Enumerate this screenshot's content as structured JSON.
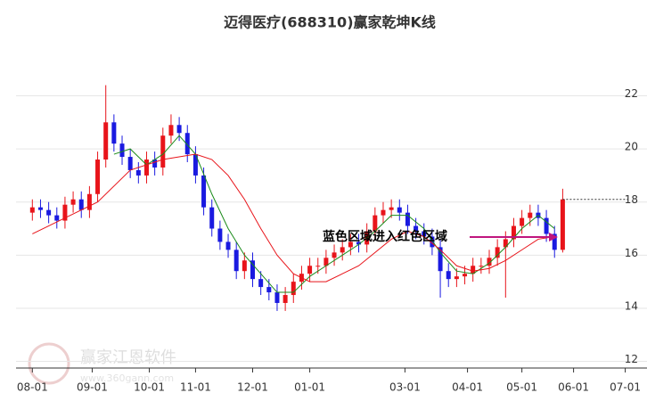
{
  "chart_data": {
    "type": "candlestick",
    "title": "迈得医疗(688310)赢家乾坤K线",
    "watermark": "赢家江恩软件",
    "watermark_url": "www.360gann.com",
    "annotation": "蓝色区域进入红色区域",
    "annotation_color": "#c0157e",
    "up_color": "#e8141a",
    "down_color": "#1a1ae0",
    "ylim": [
      11.75,
      24.6
    ],
    "yticks": [
      12,
      14,
      16,
      18,
      20,
      22
    ],
    "grid": true,
    "xlim": [
      -6,
      226
    ],
    "xticks": [
      {
        "value": 0,
        "label": "08-01"
      },
      {
        "value": 22,
        "label": "09-01"
      },
      {
        "value": 43,
        "label": "10-01"
      },
      {
        "value": 60,
        "label": "11-01"
      },
      {
        "value": 81,
        "label": "12-01"
      },
      {
        "value": 102,
        "label": "01-01"
      },
      {
        "value": 137,
        "label": "03-01"
      },
      {
        "value": 160,
        "label": "04-01"
      },
      {
        "value": 180,
        "label": "05-01"
      },
      {
        "value": 199,
        "label": "06-01"
      },
      {
        "value": 218,
        "label": "07-01"
      }
    ],
    "x": [
      0,
      3,
      6,
      9,
      12,
      15,
      18,
      21,
      24,
      27,
      30,
      33,
      36,
      39,
      42,
      45,
      48,
      51,
      54,
      57,
      60,
      63,
      66,
      69,
      72,
      75,
      78,
      81,
      84,
      87,
      90,
      93,
      96,
      99,
      102,
      105,
      108,
      111,
      114,
      117,
      120,
      123,
      126,
      129,
      132,
      135,
      138,
      141,
      144,
      147,
      150,
      153,
      156,
      159,
      162,
      165,
      168,
      171,
      174,
      177,
      180,
      183,
      186,
      189,
      192,
      195
    ],
    "open": [
      17.6,
      17.8,
      17.7,
      17.5,
      17.3,
      17.9,
      18.1,
      17.7,
      18.3,
      19.6,
      21.0,
      20.2,
      19.7,
      19.2,
      19.0,
      19.6,
      19.3,
      20.5,
      20.9,
      20.6,
      19.8,
      19.0,
      17.8,
      17.0,
      16.5,
      16.2,
      15.4,
      15.8,
      15.1,
      14.8,
      14.6,
      14.2,
      14.5,
      15.0,
      15.3,
      15.6,
      15.6,
      15.9,
      16.1,
      16.3,
      16.5,
      16.4,
      16.9,
      17.5,
      17.7,
      17.8,
      17.6,
      17.1,
      16.9,
      16.7,
      16.3,
      15.4,
      15.1,
      15.2,
      15.3,
      15.6,
      15.6,
      15.9,
      16.3,
      16.6,
      17.1,
      17.4,
      17.6,
      17.4,
      16.8,
      16.2
    ],
    "high": [
      18.1,
      18.1,
      18.0,
      17.8,
      18.2,
      18.4,
      18.4,
      18.6,
      19.9,
      22.4,
      21.3,
      20.5,
      20.0,
      19.5,
      19.9,
      19.9,
      20.8,
      21.3,
      21.2,
      20.9,
      20.1,
      19.3,
      18.1,
      17.3,
      16.8,
      16.5,
      16.1,
      16.1,
      15.4,
      15.1,
      14.9,
      14.8,
      15.3,
      15.6,
      15.9,
      15.9,
      16.2,
      16.4,
      16.6,
      16.8,
      16.8,
      17.2,
      17.8,
      18.0,
      18.1,
      18.1,
      17.9,
      17.4,
      17.2,
      17.0,
      16.6,
      15.7,
      15.5,
      15.6,
      15.9,
      15.9,
      16.2,
      16.6,
      16.9,
      17.4,
      17.7,
      17.9,
      17.9,
      17.7,
      17.1,
      18.5
    ],
    "low": [
      17.3,
      17.4,
      17.2,
      17.0,
      17.0,
      17.6,
      17.4,
      17.4,
      18.0,
      19.3,
      19.9,
      19.4,
      18.9,
      18.7,
      18.7,
      19.0,
      19.0,
      20.2,
      20.3,
      19.5,
      18.7,
      17.5,
      16.7,
      16.2,
      15.9,
      15.1,
      15.1,
      14.8,
      14.5,
      14.3,
      13.9,
      13.9,
      14.2,
      14.7,
      15.0,
      15.3,
      15.3,
      15.6,
      15.8,
      16.0,
      16.1,
      16.1,
      16.6,
      17.2,
      17.4,
      17.3,
      16.8,
      16.6,
      16.4,
      16.0,
      14.4,
      14.8,
      14.8,
      14.9,
      15.0,
      15.3,
      15.3,
      15.6,
      14.4,
      16.3,
      16.8,
      17.1,
      17.1,
      16.5,
      15.9,
      16.1
    ],
    "close": [
      17.8,
      17.7,
      17.5,
      17.3,
      17.9,
      18.1,
      17.7,
      18.3,
      19.6,
      21.0,
      20.2,
      19.7,
      19.2,
      19.0,
      19.6,
      19.3,
      20.5,
      20.9,
      20.6,
      19.8,
      19.0,
      17.8,
      17.0,
      16.5,
      16.2,
      15.4,
      15.8,
      15.1,
      14.8,
      14.6,
      14.2,
      14.5,
      15.0,
      15.3,
      15.6,
      15.6,
      15.9,
      16.1,
      16.3,
      16.5,
      16.4,
      16.9,
      17.5,
      17.7,
      17.8,
      17.6,
      17.1,
      16.9,
      16.7,
      16.3,
      15.4,
      15.1,
      15.2,
      15.3,
      15.6,
      15.6,
      15.9,
      16.3,
      16.6,
      17.1,
      17.4,
      17.6,
      17.4,
      16.8,
      16.2,
      18.1
    ],
    "lines": [
      {
        "color": "#1a8a1a",
        "x": [
          30,
          36,
          42,
          48,
          54,
          60,
          66,
          72,
          78,
          84,
          90,
          96,
          102,
          108,
          114,
          120,
          126,
          132,
          138,
          144,
          150,
          156,
          162,
          168,
          174,
          180,
          186,
          192
        ],
        "values": [
          19.8,
          20.0,
          19.4,
          19.8,
          20.5,
          19.8,
          18.3,
          17.0,
          16.0,
          15.3,
          14.6,
          14.6,
          15.2,
          15.6,
          16.0,
          16.4,
          16.9,
          17.5,
          17.5,
          17.0,
          16.1,
          15.4,
          15.3,
          15.7,
          16.3,
          17.0,
          17.5,
          17.0
        ]
      },
      {
        "color": "#e8141a",
        "x": [
          0,
          12,
          24,
          36,
          48,
          60,
          66,
          72,
          78,
          84,
          90,
          96,
          102,
          108,
          114,
          120,
          126,
          132,
          138,
          144,
          150,
          156,
          162,
          168,
          174,
          180,
          186,
          192
        ],
        "values": [
          16.8,
          17.4,
          18.0,
          19.2,
          19.6,
          19.8,
          19.6,
          19.0,
          18.1,
          17.0,
          16.0,
          15.3,
          15.0,
          15.0,
          15.3,
          15.6,
          16.1,
          16.6,
          16.9,
          16.7,
          16.2,
          15.6,
          15.4,
          15.5,
          15.8,
          16.2,
          16.6,
          16.7
        ]
      }
    ]
  }
}
